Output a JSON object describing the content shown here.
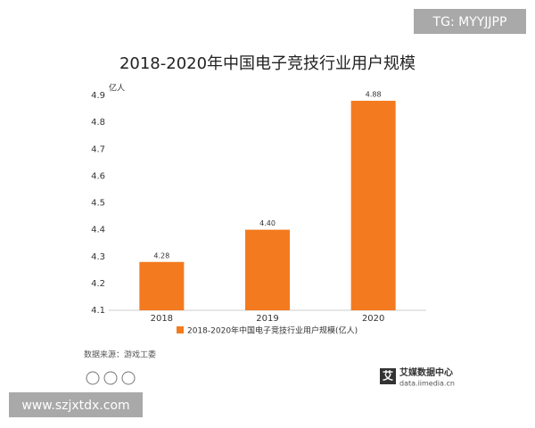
{
  "chart_data": {
    "type": "bar",
    "title": "2018-2020年中国电子竞技行业用户规模",
    "y_label": "亿人",
    "categories": [
      "2018",
      "2019",
      "2020"
    ],
    "series": [
      {
        "name": "2018-2020年中国电子竞技行业用户规模(亿人)",
        "color": "#f47a1f",
        "values": [
          4.28,
          4.4,
          4.88
        ],
        "value_labels": [
          "4.28",
          "4.40",
          "4.88"
        ]
      }
    ],
    "ylim": [
      4.1,
      4.9
    ],
    "yticks": [
      4.1,
      4.2,
      4.3,
      4.4,
      4.5,
      4.6,
      4.7,
      4.8,
      4.9
    ],
    "grid": false
  },
  "source": "数据来源：游戏工委",
  "logo": {
    "mark": "艾",
    "name": "艾媒数据中心",
    "url": "data.iimedia.cn"
  },
  "watermarks": [
    "TG: MYYJJPP",
    "www.szjxtdx.com"
  ]
}
